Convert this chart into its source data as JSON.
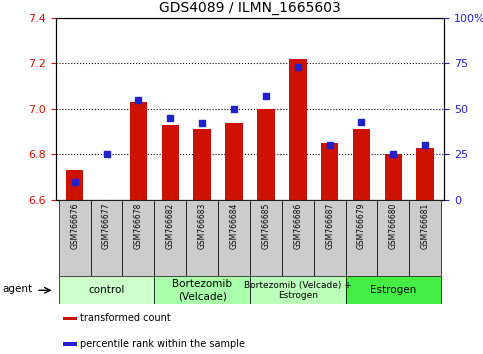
{
  "title": "GDS4089 / ILMN_1665603",
  "samples": [
    "GSM766676",
    "GSM766677",
    "GSM766678",
    "GSM766682",
    "GSM766683",
    "GSM766684",
    "GSM766685",
    "GSM766686",
    "GSM766687",
    "GSM766679",
    "GSM766680",
    "GSM766681"
  ],
  "transformed_count": [
    6.73,
    6.6,
    7.03,
    6.93,
    6.91,
    6.94,
    7.0,
    7.22,
    6.85,
    6.91,
    6.8,
    6.83
  ],
  "percentile_rank": [
    10,
    25,
    55,
    45,
    42,
    50,
    57,
    73,
    30,
    43,
    25,
    30
  ],
  "bar_bottom": 6.6,
  "ylim_left": [
    6.6,
    7.4
  ],
  "ylim_right": [
    0,
    100
  ],
  "yticks_left": [
    6.6,
    6.8,
    7.0,
    7.2,
    7.4
  ],
  "yticks_right": [
    0,
    25,
    50,
    75,
    100
  ],
  "ytick_labels_right": [
    "0",
    "25",
    "50",
    "75",
    "100%"
  ],
  "bar_color": "#cc1100",
  "dot_color": "#2222cc",
  "bg_color": "#ffffff",
  "plot_bg": "#ffffff",
  "grid_color": "#000000",
  "groups": [
    {
      "label": "control",
      "start": 0,
      "end": 3,
      "color": "#ccffcc"
    },
    {
      "label": "Bortezomib\n(Velcade)",
      "start": 3,
      "end": 6,
      "color": "#aaffaa"
    },
    {
      "label": "Bortezomib (Velcade) +\nEstrogen",
      "start": 6,
      "end": 9,
      "color": "#bbffbb"
    },
    {
      "label": "Estrogen",
      "start": 9,
      "end": 12,
      "color": "#44ee44"
    }
  ],
  "legend_items": [
    {
      "label": "transformed count",
      "color": "#cc1100"
    },
    {
      "label": "percentile rank within the sample",
      "color": "#2222cc"
    }
  ],
  "ylabel_left_color": "#cc1100",
  "ylabel_right_color": "#2222cc",
  "agent_label": "agent",
  "tick_fontsize": 8,
  "sample_fontsize": 5.5,
  "title_fontsize": 10,
  "group_fontsize": 7.5,
  "legend_fontsize": 7,
  "tick_cell_bg": "#cccccc"
}
